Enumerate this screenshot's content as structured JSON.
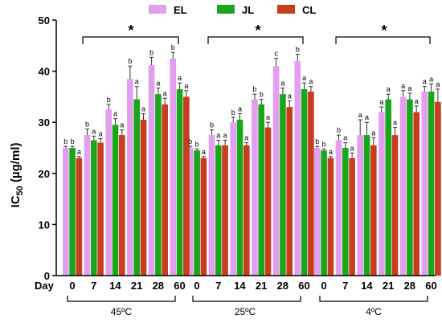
{
  "chart_data": {
    "type": "bar",
    "ylabel_main": "IC",
    "ylabel_sub": "50",
    "ylabel_unit": " (µg/ml)",
    "ylim": [
      0,
      50
    ],
    "yticks": [
      0,
      10,
      20,
      30,
      40,
      50
    ],
    "x_prefix": "Day",
    "days": [
      "0",
      "7",
      "14",
      "21",
      "28",
      "60"
    ],
    "conditions": [
      "45ºC",
      "25ºC",
      "4ºC"
    ],
    "significance_marker": "*",
    "legend_placement": "top",
    "grid": false,
    "series": [
      {
        "name": "EL",
        "color": "#e49ef0",
        "values": [
          [
            25.0,
            27.5,
            32.5,
            38.5,
            41.2,
            42.5
          ],
          [
            25.0,
            27.5,
            30.0,
            34.5,
            41.0,
            42.0
          ],
          [
            25.0,
            26.5,
            27.5,
            32.0,
            35.0,
            36.0
          ]
        ],
        "errors": [
          [
            0.3,
            1.2,
            1.0,
            2.5,
            1.5,
            1.2
          ],
          [
            0.3,
            1.0,
            1.0,
            1.0,
            1.5,
            1.3
          ],
          [
            0.3,
            1.0,
            3.0,
            1.0,
            1.2,
            1.0
          ]
        ],
        "letters": [
          [
            "b",
            "b",
            "b",
            "b",
            "b",
            "b"
          ],
          [
            "b",
            "b",
            "b",
            "b",
            "c",
            "b"
          ],
          [
            "b",
            "b",
            "a",
            "a",
            "a",
            "a"
          ]
        ]
      },
      {
        "name": "JL",
        "color": "#1aa61a",
        "values": [
          [
            25.0,
            26.5,
            29.5,
            34.5,
            35.5,
            36.5
          ],
          [
            24.5,
            25.5,
            30.5,
            33.5,
            35.5,
            36.5
          ],
          [
            24.5,
            25.0,
            27.5,
            34.5,
            34.5,
            36.0
          ]
        ],
        "errors": [
          [
            0.3,
            0.8,
            1.2,
            2.5,
            1.2,
            1.2
          ],
          [
            0.3,
            1.0,
            1.2,
            1.0,
            1.2,
            1.2
          ],
          [
            0.3,
            1.0,
            2.5,
            1.0,
            1.2,
            1.5
          ]
        ],
        "letters": [
          [
            "b",
            "a",
            "a",
            "a",
            "a",
            "a"
          ],
          [
            "b",
            "a",
            "a",
            "b",
            "a",
            "a"
          ],
          [
            "b",
            "a",
            "a",
            "a",
            "a",
            "a"
          ]
        ]
      },
      {
        "name": "CL",
        "color": "#c73d1e",
        "values": [
          [
            23.0,
            26.0,
            27.5,
            30.5,
            33.5,
            35.0
          ],
          [
            23.0,
            25.5,
            25.5,
            29.0,
            33.0,
            36.0
          ],
          [
            23.0,
            23.0,
            25.5,
            27.5,
            32.0,
            34.0
          ]
        ],
        "errors": [
          [
            0.3,
            0.8,
            1.0,
            1.2,
            1.2,
            1.2
          ],
          [
            0.3,
            1.0,
            0.5,
            1.0,
            1.2,
            1.0
          ],
          [
            0.3,
            1.0,
            1.5,
            1.5,
            1.2,
            2.5
          ]
        ],
        "letters": [
          [
            "a",
            "a",
            "a",
            "a",
            "a",
            "a"
          ],
          [
            "a",
            "a",
            "a",
            "a",
            "a",
            "a"
          ],
          [
            "a",
            "a",
            "a",
            "a",
            "a",
            "a"
          ]
        ]
      }
    ]
  }
}
